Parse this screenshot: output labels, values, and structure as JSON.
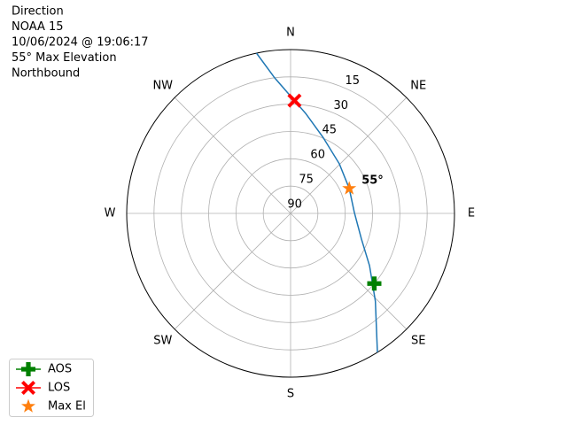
{
  "chart_data": {
    "type": "polar",
    "title_lines": [
      "Direction",
      "NOAA 15",
      "10/06/2024 @ 19:06:17",
      "55° Max Elevation",
      "Northbound"
    ],
    "xlim": [
      0,
      360
    ],
    "xticks": [
      {
        "value": 0,
        "label": "N"
      },
      {
        "value": 45,
        "label": "NE"
      },
      {
        "value": 90,
        "label": "E"
      },
      {
        "value": 135,
        "label": "SE"
      },
      {
        "value": 180,
        "label": "S"
      },
      {
        "value": 225,
        "label": "SW"
      },
      {
        "value": 270,
        "label": "W"
      },
      {
        "value": 315,
        "label": "NW"
      }
    ],
    "ylim": [
      90,
      0
    ],
    "yticks": [
      15,
      30,
      45,
      60,
      75,
      90
    ],
    "grid": true,
    "track": {
      "color": "#1f77b4",
      "x": [
        148,
        136,
        123.5,
        110,
        89,
        67,
        44.5,
        23,
        8.6,
        2,
        353.3,
        348
      ],
      "values": [
        0,
        23,
        38,
        48.6,
        55,
        55,
        51.8,
        44.5,
        34.5,
        28,
        15,
        0
      ]
    },
    "series": [
      {
        "name": "AOS",
        "color": "#008000",
        "marker": "P",
        "linestyle": "-",
        "x": [
          130
        ],
        "values": [
          30
        ]
      },
      {
        "name": "LOS",
        "color": "#ff0000",
        "marker": "X",
        "linestyle": "-",
        "x": [
          2
        ],
        "values": [
          28
        ]
      },
      {
        "name": "Max El",
        "color": "#ff7f0e",
        "marker": "*",
        "linestyle": "none",
        "x": [
          67
        ],
        "values": [
          55
        ],
        "value_labels": [
          "55°"
        ]
      }
    ],
    "legend": "lower left"
  }
}
